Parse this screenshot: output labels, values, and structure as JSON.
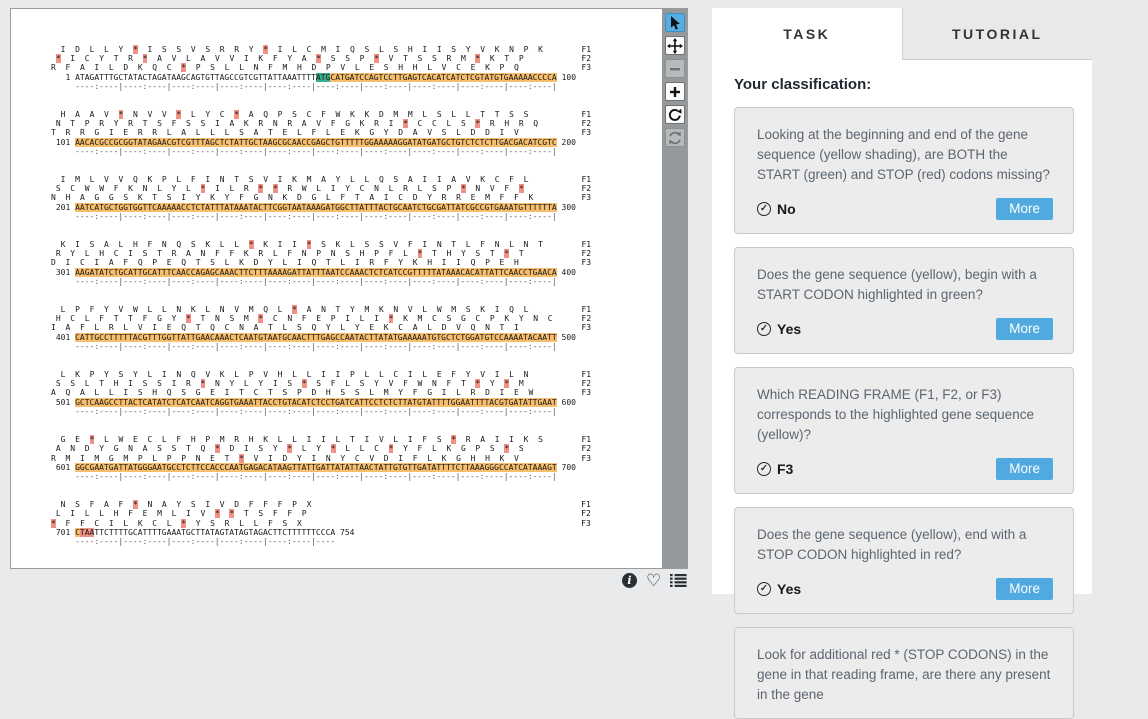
{
  "colors": {
    "gene_highlight": "#f6be6d",
    "start_codon_highlight": "#3cb08e",
    "stop_codon_highlight": "#f19084",
    "active_tool": "#54aee3",
    "more_button": "#50a9df"
  },
  "viewer": {
    "frame_labels": [
      "F1",
      "F2",
      "F3"
    ],
    "toolbar_tools": [
      "pointer",
      "pan",
      "zoom-out",
      "zoom-in",
      "rotate",
      "reset"
    ],
    "blocks": [
      {
        "start": 1,
        "end": 100,
        "f1": "I D L L Y * I S S V S R R Y * I L C M I Q S L S H I I S Y V K N P K",
        "f2": "* I C Y T R * A V L A V V I K F Y A * S S P * V T S S R M * K T P",
        "f3": "R F A I L D K Q C * P S L L N F M H D P V L E S H H L V C E K P Q",
        "segments": [
          {
            "t": "ATAGATTTGCTATACTAGATAAGCAGTGTTAGCCGTCGTTATTAAATTTT",
            "c": ""
          },
          {
            "t": "ATG",
            "c": "start"
          },
          {
            "t": "CATGATCCAGTCCTTGAGTCACATCATCTCGTATGTGAAAAACCCCA",
            "c": "gene"
          }
        ]
      },
      {
        "start": 101,
        "end": 200,
        "f1": "H A A V * N V V * L Y C * A Q P S C F W K K D M M L S L L T T S S",
        "f2": "N T P R Y R T S F S S I A K R N R A V F G K R I * C C L S * R H R Q",
        "f3": "T R R G I E R R L A L L L S A T E L F L E K G Y D A V S L D D I V",
        "segments": [
          {
            "t": "AACACGCCGCGGTATAGAACGTCGTTTAGCTCTATTGCTAAGCGCAACCGAGCTGTTTTTGGAAAAAGGATATGATGCTGTCTCTCTTGACGACATCGTC",
            "c": "gene"
          }
        ]
      },
      {
        "start": 201,
        "end": 300,
        "f1": "I M L V V Q K P L F I N T S V I K M A Y L L Q S A I I A V K C F L",
        "f2": "S C W W F K N L Y L * I L R * * R W L I Y C N L R L S P * N V F *",
        "f3": "N H A G G S K T S I Y K Y F G N K D G L F T A I C D Y R R E M F F K",
        "segments": [
          {
            "t": "AATCATGCTGGTGGTTCAAAAACCTCTATTTATAAATACTTCGGTAATAAAGATGGCTTATTTACTGCAATCTGCGATTATCGCCGTGAAATGTTTTTTA",
            "c": "gene"
          }
        ]
      },
      {
        "start": 301,
        "end": 400,
        "f1": "K I S A L H F N Q S K L L * K I I * S K L S S V F I N T L F N L N T",
        "f2": "R Y L H C I S T R A N F F K R L F N P N S H P F L * T H Y S T * T",
        "f3": "D I C I A F Q P E Q T S L K D Y L I Q T L I R F Y K H I I Q P E H",
        "segments": [
          {
            "t": "AAGATATCTGCATTGCATTTCAACCAGAGCAAACTTCTTTAAAAGATTATTTAATCCAAACTCTCATCCGTTTTTATAAACACATTATTCAACCTGAACA",
            "c": "gene"
          }
        ]
      },
      {
        "start": 401,
        "end": 500,
        "f1": "L P F Y V W L L N K L N V M Q L * A N T Y M K N V L W M S K I Q L",
        "f2": "H C L F T T F G Y * T N S M * C N F E P I L I * K M C S G C P K Y N C",
        "f3": "I A F L R L V I E Q T Q C N A T L S Q Y L Y E K C A L D V Q N T I",
        "segments": [
          {
            "t": "CATTGCCTTTTTACGTTTGGTTATTGAACAAACTCAATGTAATGCAACTTTGAGCCAATACTTATATGAAAAATGTGCTCTGGATGTCCAAAATACAATT",
            "c": "gene"
          }
        ]
      },
      {
        "start": 501,
        "end": 600,
        "f1": "L K P Y S Y L I N Q V K L P V H L L I I P L L C I L E F Y V I L N",
        "f2": "S S L T H I S S I R * N Y L Y I S * S F L S Y V F W N F T * Y * M",
        "f3": "A Q A L L I S H Q S G E I T C T S P D H S S L M Y F G I L R D I E W",
        "segments": [
          {
            "t": "GCTCAAGCCTTACTCATATCTCATCAATCAGGTGAAATTACCTGTACATCTCCTGATCATTCCTCTCTTATGTATTTTGGAATTTTACGTGATATTGAAT",
            "c": "gene"
          }
        ]
      },
      {
        "start": 601,
        "end": 700,
        "f1": "G E * L W E C L F H P M R H K L L I I L T I V L I F S * R A I I K S",
        "f2": "A N D Y G N A S S T Q * D I S Y * L Y * L L C * Y F L K G P S * S",
        "f3": "R M I M G M P L P P N E T * V I D Y I N Y C V D I F L K G H H K V",
        "segments": [
          {
            "t": "GGCGAATGATTATGGGAATGCCTCTTCCACCCAATGAGACATAAGTTATTGATTATATTAACTATTGTGTTGATATTTTCTTAAAGGGCCATCATAAAGT",
            "c": "gene"
          }
        ]
      },
      {
        "start": 701,
        "end": 754,
        "f1": "N S F A F * N A Y S I V D F F F P X",
        "f2": "L I L L H F E M L I V * * T S F F P",
        "f3": "* F F C I L K C L * Y S R L L F S X",
        "segments": [
          {
            "t": "C",
            "c": "gene"
          },
          {
            "t": "TAA",
            "c": "stop"
          },
          {
            "t": "TTCTTTTGCATTTTGAAATGCTTATAGTATAGTAGACTTCTTTTTTCCCA",
            "c": ""
          }
        ]
      }
    ]
  },
  "panel": {
    "tabs": [
      {
        "label": "TASK",
        "active": true
      },
      {
        "label": "TUTORIAL",
        "active": false
      }
    ],
    "heading": "Your classification:",
    "more_label": "More",
    "questions": [
      {
        "q": "Looking at the beginning and end of the gene sequence (yellow shading), are BOTH the START (green) and STOP (red) codons missing?",
        "a": "No"
      },
      {
        "q": "Does the gene sequence (yellow), begin with a START CODON highlighted in green?",
        "a": "Yes"
      },
      {
        "q": "Which READING FRAME (F1, F2, or F3) corresponds to the highlighted gene sequence (yellow)?",
        "a": "F3"
      },
      {
        "q": "Does the gene sequence (yellow), end with a STOP CODON highlighted in red?",
        "a": "Yes"
      },
      {
        "q": "Look for additional red * (STOP CODONS) in the gene in that reading frame, are there any present in the gene",
        "a": null
      }
    ]
  }
}
